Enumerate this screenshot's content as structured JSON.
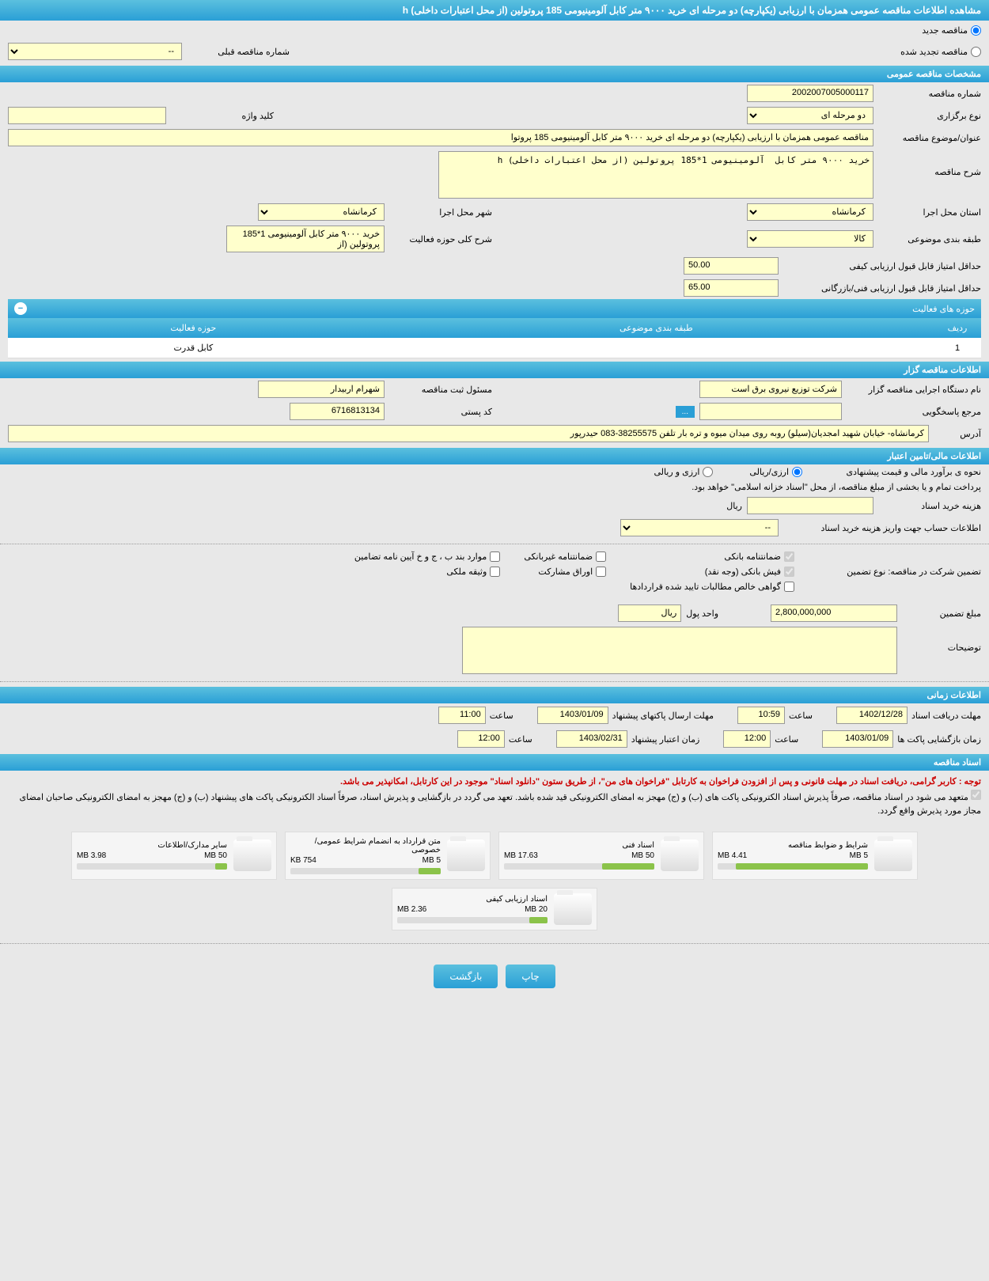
{
  "header": {
    "title": "مشاهده اطلاعات مناقصه عمومی همزمان با ارزیابی (یکپارچه) دو مرحله ای خرید ۹۰۰۰ متر کابل آلومینیومی 185 پروتولین (از محل اعتبارات داخلی) h"
  },
  "tender_type": {
    "new_label": "مناقصه جدید",
    "renewed_label": "مناقصه تجدید شده",
    "prev_number_label": "شماره مناقصه قبلی",
    "prev_number_value": "--"
  },
  "sections": {
    "general": "مشخصات مناقصه عمومی",
    "holder": "اطلاعات مناقصه گزار",
    "financial": "اطلاعات مالی/تامین اعتبار",
    "timing": "اطلاعات زمانی",
    "docs": "اسناد مناقصه"
  },
  "general": {
    "tender_no_label": "شماره مناقصه",
    "tender_no": "2002007005000117",
    "keyword_label": "کلید واژه",
    "keyword": "",
    "hold_type_label": "نوع برگزاری",
    "hold_type": "دو مرحله ای",
    "subject_label": "عنوان/موضوع مناقصه",
    "subject": "مناقصه عمومی همزمان با ارزیابی (یکپارچه) دو مرحله ای خرید ۹۰۰۰ متر کابل  آلومینیومی 185 پروتوا",
    "desc_label": "شرح مناقصه",
    "desc": "خرید ۹۰۰۰ متر کابل  آلومینیومی 1*185 پروتولین (از محل اعتبارات داخلی) h",
    "province_label": "استان محل اجرا",
    "province": "کرمانشاه",
    "city_label": "شهر محل اجرا",
    "city": "کرمانشاه",
    "category_label": "طبقه بندی موضوعی",
    "category": "کالا",
    "scope_desc_label": "شرح کلی حوزه فعالیت",
    "scope_desc": "خرید ۹۰۰۰ متر کابل آلومینیومی 1*185 پروتولین (از",
    "min_quality_score_label": "حداقل امتیاز قابل قبول ارزیابی کیفی",
    "min_quality_score": "50.00",
    "min_tech_score_label": "حداقل امتیاز قابل قبول ارزیابی فنی/بازرگانی",
    "min_tech_score": "65.00"
  },
  "activity": {
    "header": "حوزه های فعالیت",
    "col_row": "ردیف",
    "col_category": "طبقه بندی موضوعی",
    "col_scope": "حوزه فعالیت",
    "rows": [
      {
        "idx": "1",
        "category": "",
        "scope": "کابل قدرت"
      }
    ]
  },
  "holder": {
    "org_label": "نام دستگاه اجرایی مناقصه گزار",
    "org": "شرکت توزیع نیروی برق است",
    "resp_label": "مسئول ثبت مناقصه",
    "resp": "شهرام اربیدار",
    "ref_label": "مرجع پاسخگویی",
    "ref": "",
    "more": "...",
    "postal_label": "کد پستی",
    "postal": "6716813134",
    "addr_label": "آدرس",
    "addr": "کرمانشاه- خیابان شهید امجدیان(سیلو) روبه روی میدان میوه و تره بار تلفن 38255575-083  حیدرپور"
  },
  "financial": {
    "estimate_label": "نحوه ی برآورد مالی و قیمت پیشنهادی",
    "opt_rial": "ارزی/ریالی",
    "opt_both": "ارزی و ریالی",
    "payment_note": "پرداخت تمام و یا بخشی از مبلغ مناقصه، از محل \"اسناد خزانه اسلامی\" خواهد بود.",
    "doc_fee_label": "هزینه خرید اسناد",
    "doc_fee": "",
    "currency_rial": "ریال",
    "account_label": "اطلاعات حساب جهت واریز هزینه خرید اسناد",
    "account_value": "--",
    "guarantee_type_label": "تضمین شرکت در مناقصه:   نوع تضمین",
    "chk_bank": "ضمانتنامه بانکی",
    "chk_nonbank": "ضمانتنامه غیربانکی",
    "chk_other": "موارد بند ب ، ج و خ آیین نامه تضامین",
    "chk_receipt": "فیش بانکی (وجه نقد)",
    "chk_bonds": "اوراق مشارکت",
    "chk_property": "وثیقه ملکی",
    "chk_claims": "گواهی خالص مطالبات تایید شده قراردادها",
    "guarantee_amount_label": "مبلغ تضمین",
    "guarantee_amount": "2,800,000,000",
    "unit_label": "واحد پول",
    "unit": "ریال",
    "notes_label": "توضیحات",
    "notes": ""
  },
  "timing": {
    "doc_deadline_label": "مهلت دریافت اسناد",
    "doc_deadline_date": "1402/12/28",
    "time_label": "ساعت",
    "doc_deadline_time": "10:59",
    "envelope_deadline_label": "مهلت ارسال پاکتهای پیشنهاد",
    "envelope_deadline_date": "1403/01/09",
    "envelope_deadline_time": "11:00",
    "opening_label": "زمان بازگشایی پاکت ها",
    "opening_date": "1403/01/09",
    "opening_time": "12:00",
    "validity_label": "زمان اعتبار پیشنهاد",
    "validity_date": "1403/02/31",
    "validity_time": "12:00"
  },
  "docs": {
    "note1": "توجه : کاربر گرامی، دریافت اسناد در مهلت قانونی و پس از افزودن فراخوان به کارتابل \"فراخوان های من\"، از طریق ستون \"دانلود اسناد\" موجود در این کارتابل، امکانپذیر می باشد.",
    "note2": "متعهد می شود در اسناد مناقصه، صرفاً پذیرش اسناد الکترونیکی پاکت های (ب) و (ج) مهجز به امضای الکترونیکی قید شده باشد. تعهد می گردد در بازگشایی و پذیرش اسناد، صرفاً اسناد الکترونیکی پاکت های پیشنهاد (ب) و (ج) مهجز به امضای الکترونیکی صاحبان امضای مجاز مورد پذیرش واقع گردد.",
    "items": [
      {
        "name": "شرایط و ضوابط مناقصه",
        "size": "4.41 MB",
        "max": "5 MB",
        "pct": 88
      },
      {
        "name": "اسناد فنی",
        "size": "17.63 MB",
        "max": "50 MB",
        "pct": 35
      },
      {
        "name": "متن قرارداد به انضمام شرایط عمومی/خصوصی",
        "size": "754 KB",
        "max": "5 MB",
        "pct": 15
      },
      {
        "name": "سایر مدارک/اطلاعات",
        "size": "3.98 MB",
        "max": "50 MB",
        "pct": 8
      },
      {
        "name": "اسناد ارزیابی کیفی",
        "size": "2.36 MB",
        "max": "20 MB",
        "pct": 12
      }
    ]
  },
  "buttons": {
    "print": "چاپ",
    "back": "بازگشت"
  },
  "colors": {
    "header_bg": "#2a9fd6",
    "field_bg": "#ffffcc",
    "page_bg": "#e8e8e8"
  }
}
